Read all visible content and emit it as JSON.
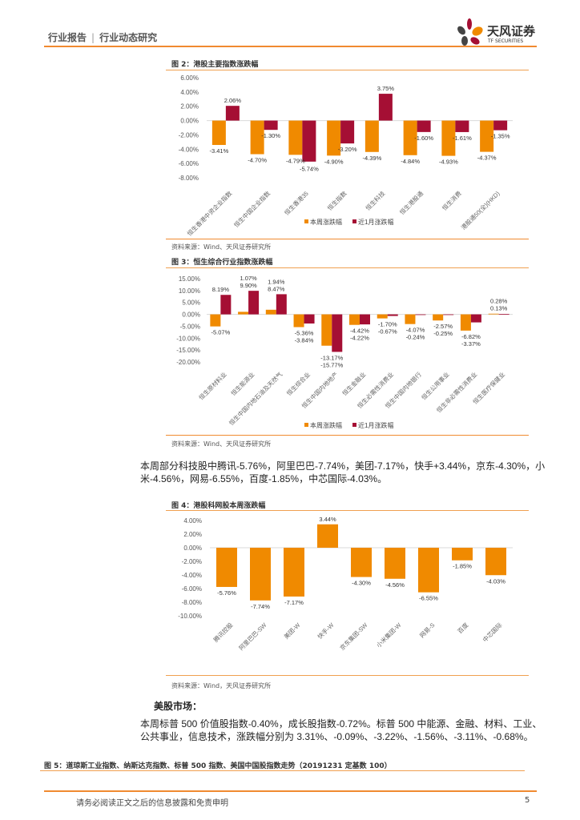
{
  "header": {
    "section": "行业报告",
    "subsection": "行业动态研究",
    "logo_cn": "天风证券",
    "logo_en": "TF SECURITIES"
  },
  "colors": {
    "orange": "#f08a00",
    "crimson": "#a50f34",
    "accent_line": "#f0a050"
  },
  "fig2": {
    "title": "图 2：港股主要指数涨跌幅",
    "source": "资料来源：Wind、天风证券研究所"
  },
  "fig3": {
    "title": "图 3：恒生综合行业指数涨跌幅",
    "source": "资料来源：Wind、天风证券研究所"
  },
  "para1": "本周部分科技股中腾讯-5.76%，阿里巴巴-7.74%，美团-7.17%，快手+3.44%，京东-4.30%，小米-4.56%，网易-6.55%，百度-1.85%，中芯国际-4.03%。",
  "fig4": {
    "title": "图 4：港股科网股本周涨跌幅",
    "source": "资料来源：Wind，天风证券研究所"
  },
  "us_heading": "美股市场：",
  "para2": "本周标普 500 价值股指数-0.40%，成长股指数-0.72%。标普 500 中能源、金融、材料、工业、公共事业，信息技术，涨跌幅分别为 3.31%、-0.09%、-3.22%、-1.56%、-3.11%、-0.68%。",
  "fig5": {
    "title": "图 5：道琼斯工业指数、纳斯达克指数、标普 500 指数、美国中国股指数走势（20191231 定基数 100）"
  },
  "footer": {
    "disclaimer": "请务必阅读正文之后的信息披露和免责申明",
    "page": "5"
  },
  "chart_data": [
    {
      "type": "bar",
      "title": "图 2：港股主要指数涨跌幅",
      "categories": [
        "恒生香港中资企业指数",
        "恒生中国企业指数",
        "恒生香港35",
        "恒生指数",
        "恒生科技",
        "恒生港股通",
        "恒生消费",
        "港股通50(全)(HKD)"
      ],
      "series": [
        {
          "name": "本周涨跌幅",
          "color": "#f08a00",
          "values": [
            -3.41,
            -4.7,
            -4.79,
            -4.9,
            -4.39,
            -4.84,
            -4.93,
            -4.37
          ]
        },
        {
          "name": "近1月涨跌幅",
          "color": "#a50f34",
          "values": [
            2.06,
            -1.3,
            -5.74,
            -3.2,
            3.75,
            -1.6,
            -1.61,
            -1.35
          ]
        }
      ],
      "yticks": [
        "6.00%",
        "4.00%",
        "2.00%",
        "0.00%",
        "-2.00%",
        "-4.00%",
        "-6.00%",
        "-8.00%"
      ],
      "ylim": [
        -8,
        6
      ],
      "legend": "bottom",
      "grid": false
    },
    {
      "type": "bar",
      "title": "图 3：恒生综合行业指数涨跌幅",
      "categories": [
        "恒生原材料业",
        "恒生能源业",
        "恒生中国内地石油及天然气",
        "恒生综合业",
        "恒生中国内地地产",
        "恒生金融业",
        "恒生必需性消费业",
        "恒生中国内地银行",
        "恒生公用事业",
        "恒生非必需性消费业",
        "恒生医疗保健业"
      ],
      "series": [
        {
          "name": "本周涨跌幅",
          "color": "#f08a00",
          "values": [
            -5.07,
            1.07,
            1.94,
            -5.36,
            -13.17,
            -4.42,
            -1.7,
            -4.07,
            -2.57,
            -6.82,
            0.28
          ]
        },
        {
          "name": "近1月涨跌幅",
          "color": "#a50f34",
          "values": [
            8.19,
            9.9,
            8.47,
            -3.84,
            -15.77,
            -4.22,
            -0.67,
            -0.24,
            -0.25,
            -3.37,
            0.13
          ]
        }
      ],
      "yticks": [
        "15.00%",
        "10.00%",
        "5.00%",
        "0.00%",
        "-5.00%",
        "-10.00%",
        "-15.00%",
        "-20.00%"
      ],
      "ylim": [
        -20,
        15
      ],
      "legend": "bottom",
      "grid": false
    },
    {
      "type": "bar",
      "title": "图 4：港股科网股本周涨跌幅",
      "categories": [
        "腾讯控股",
        "阿里巴巴-SW",
        "美团-W",
        "快手-W",
        "京东集团-SW",
        "小米集团-W",
        "网易-S",
        "百度",
        "中芯国际"
      ],
      "series": [
        {
          "color": "#f08a00",
          "values": [
            -5.76,
            -7.74,
            -7.17,
            3.44,
            -4.3,
            -4.56,
            -6.55,
            -1.85,
            -4.03
          ]
        }
      ],
      "yticks": [
        "4.00%",
        "2.00%",
        "0.00%",
        "-2.00%",
        "-4.00%",
        "-6.00%",
        "-8.00%",
        "-10.00%"
      ],
      "ylim": [
        -10,
        4
      ],
      "legend": "none",
      "grid": false
    }
  ]
}
